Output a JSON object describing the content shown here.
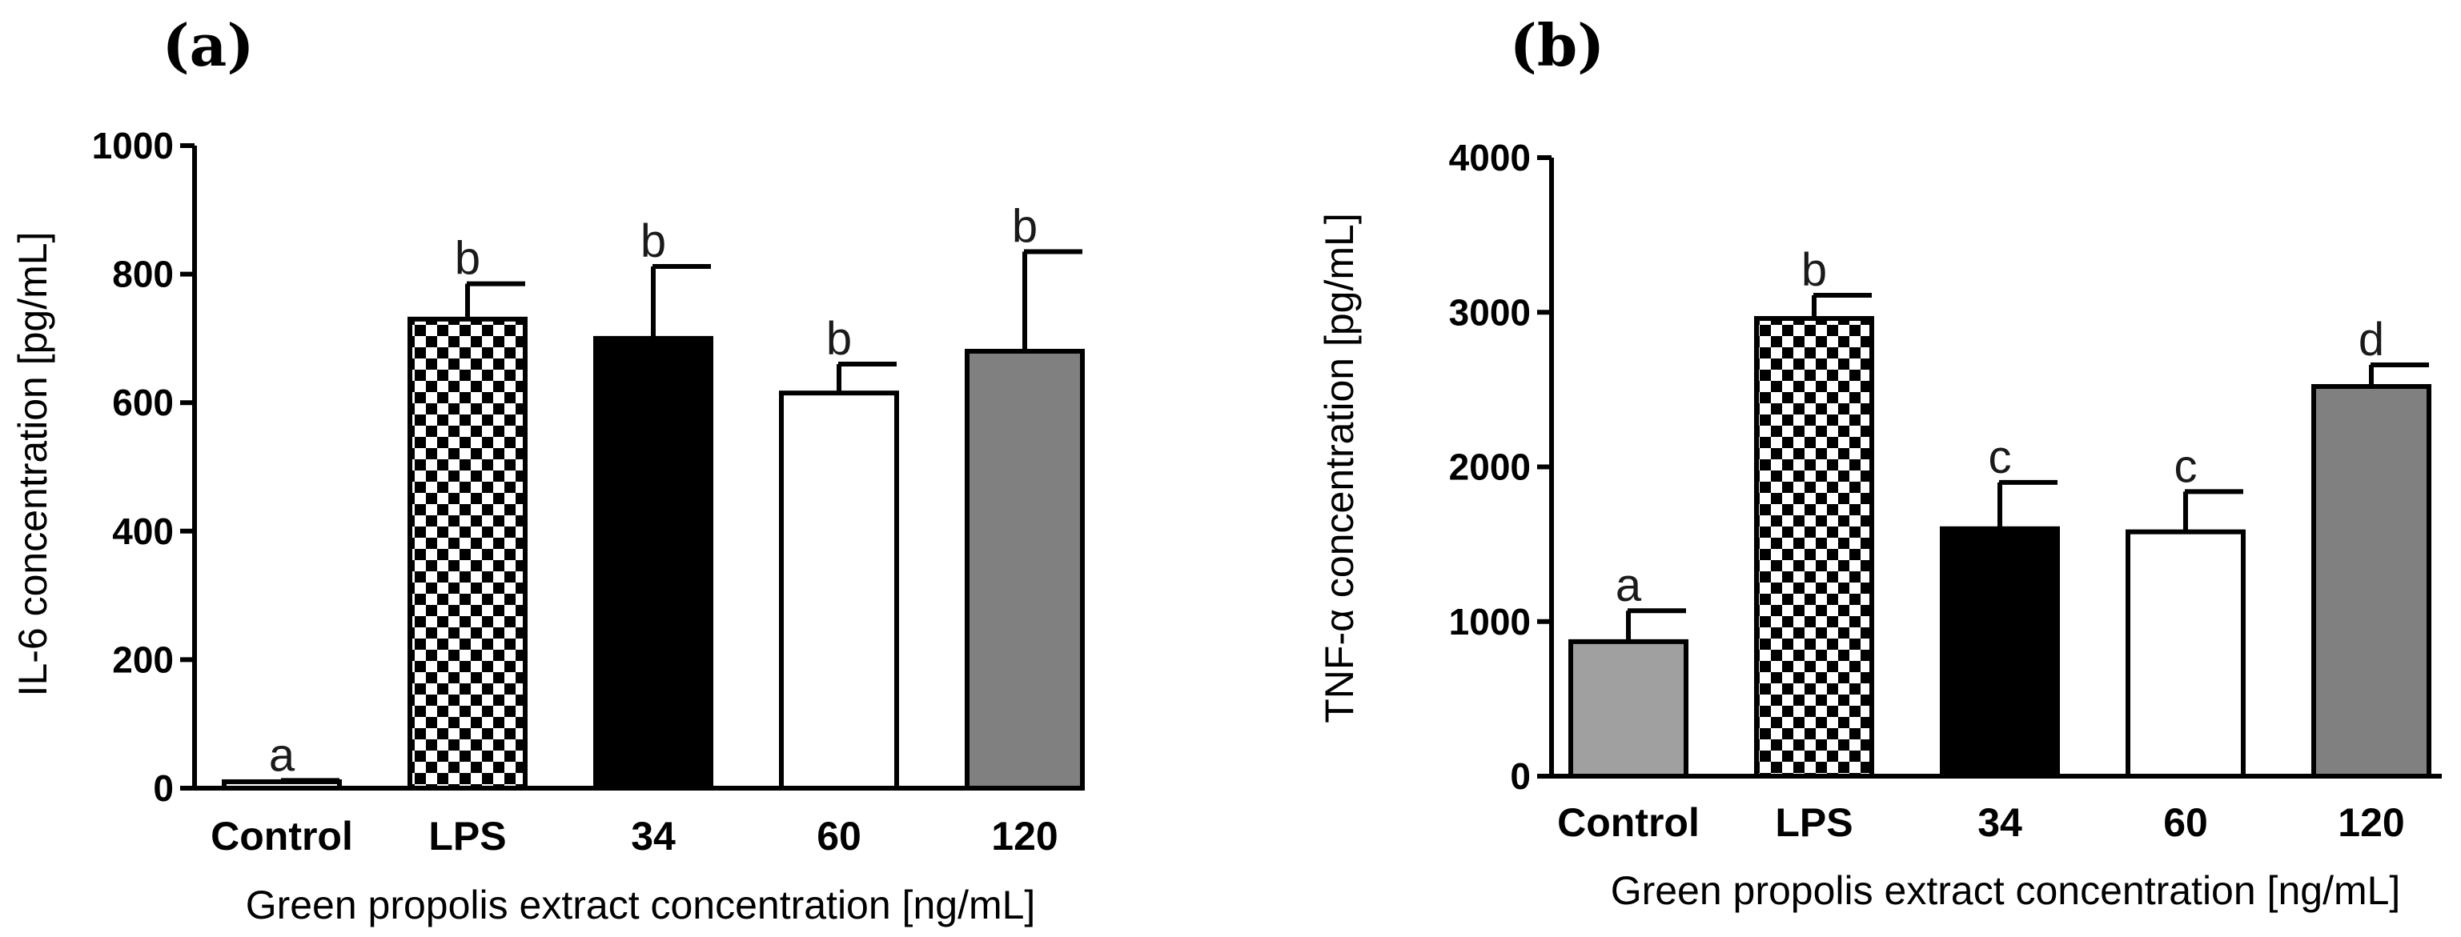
{
  "chart_data": [
    {
      "type": "bar",
      "panel_label": "(a)",
      "categories": [
        "Control",
        "LPS",
        "34",
        "60",
        "120"
      ],
      "values": [
        10,
        730,
        700,
        615,
        680
      ],
      "errors": [
        2,
        55,
        112,
        45,
        155
      ],
      "significance_letters": [
        "a",
        "b",
        "b",
        "b",
        "b"
      ],
      "bar_fills": [
        "#ffffff",
        "checker",
        "#000000",
        "#ffffff",
        "#808080"
      ],
      "xlabel": "Green propolis extract concentration [ng/mL]",
      "ylabel": "IL-6 concentration [pg/mL]",
      "ylim": [
        0,
        1000
      ],
      "yticks": [
        0,
        200,
        400,
        600,
        800,
        1000
      ],
      "grid": false,
      "legend": "none"
    },
    {
      "type": "bar",
      "panel_label": "(b)",
      "categories": [
        "Control",
        "LPS",
        "34",
        "60",
        "120"
      ],
      "values": [
        870,
        2960,
        1600,
        1580,
        2520
      ],
      "errors": [
        200,
        150,
        300,
        260,
        140
      ],
      "significance_letters": [
        "a",
        "b",
        "c",
        "c",
        "d"
      ],
      "bar_fills": [
        "#a0a0a0",
        "checker",
        "#000000",
        "#ffffff",
        "#808080"
      ],
      "xlabel": "Green propolis extract concentration [ng/mL]",
      "ylabel": "TNF-α concentration [pg/mL]",
      "ylim": [
        0,
        4000
      ],
      "yticks": [
        0,
        1000,
        2000,
        3000,
        4000
      ],
      "grid": false,
      "legend": "none"
    }
  ]
}
